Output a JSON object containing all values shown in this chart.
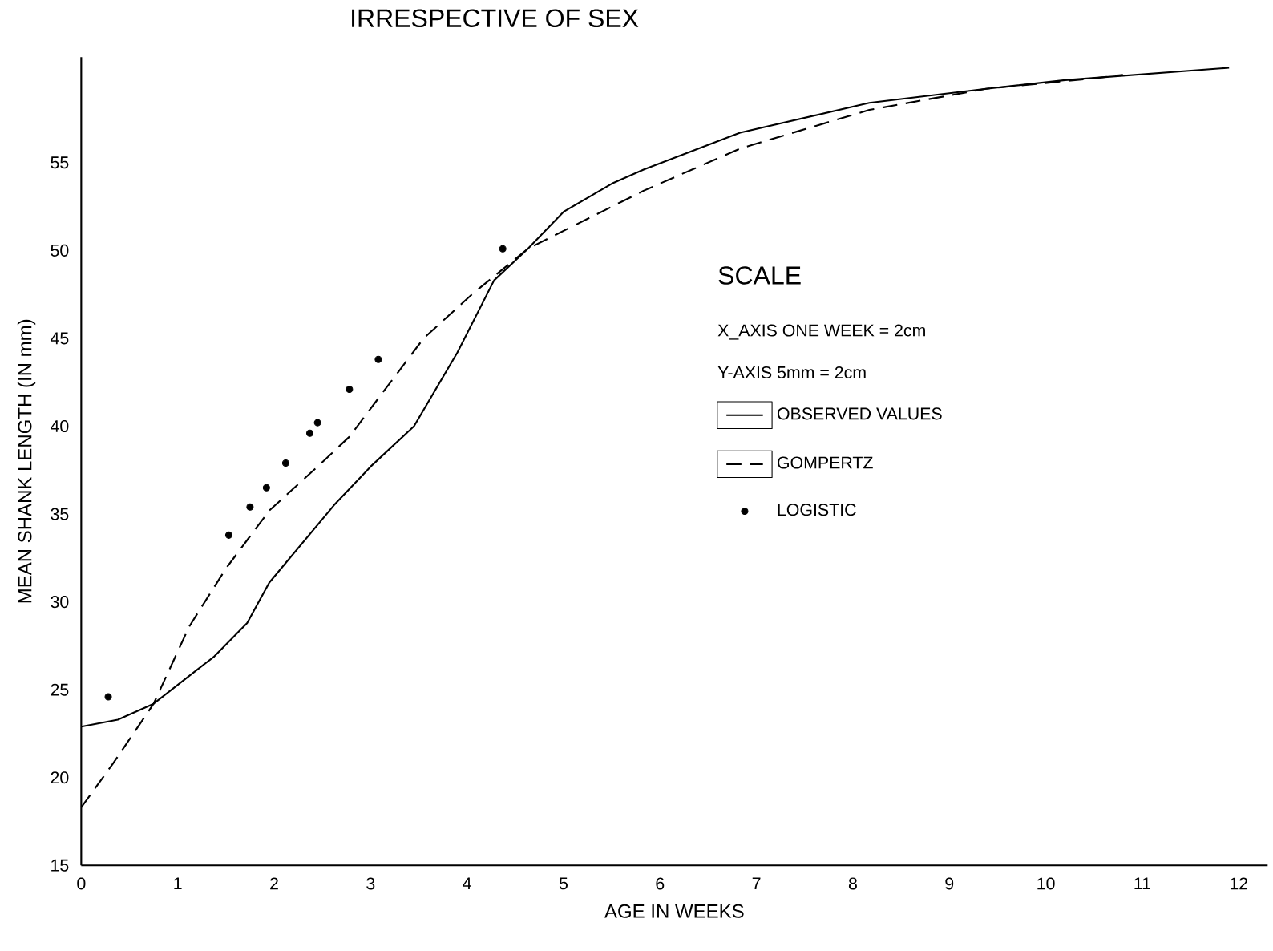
{
  "chart_data": {
    "type": "line",
    "title": "IRRESPECTIVE OF SEX",
    "xlabel": "AGE IN WEEKS",
    "ylabel": "MEAN SHANK LENGTH (IN mm)",
    "xlim": [
      0,
      12.3
    ],
    "ylim": [
      15,
      61
    ],
    "xticks": [
      0,
      1,
      2,
      3,
      4,
      5,
      6,
      7,
      8,
      9,
      10,
      11,
      12
    ],
    "yticks": [
      15,
      20,
      25,
      30,
      35,
      40,
      45,
      50,
      55
    ],
    "grid": false,
    "legend": "right",
    "annotations": [
      "SCALE",
      "X_AXIS   ONE WEEK = 2cm",
      "Y-AXIS   5mm = 2cm"
    ],
    "series": [
      {
        "name": "OBSERVED VALUES",
        "line_style": "solid",
        "color": "#000000",
        "x": [
          0,
          0.38,
          0.75,
          1.38,
          1.72,
          1.95,
          2.62,
          3.0,
          3.45,
          3.9,
          4.28,
          4.63,
          5.0,
          5.5,
          5.83,
          6.83,
          8.17,
          9.38,
          10.2,
          11.9
        ],
        "values": [
          22.9,
          23.3,
          24.2,
          26.9,
          28.8,
          31.1,
          35.5,
          37.7,
          40.0,
          44.2,
          48.3,
          50.1,
          52.2,
          53.8,
          54.6,
          56.7,
          58.4,
          59.2,
          59.7,
          60.4
        ]
      },
      {
        "name": "GOMPERTZ",
        "line_style": "dashed",
        "color": "#000000",
        "x": [
          0,
          0.33,
          0.75,
          1.12,
          1.5,
          1.95,
          2.45,
          2.78,
          3.55,
          4.05,
          4.63,
          5.83,
          6.83,
          8.17,
          9.38,
          10.5,
          10.8
        ],
        "values": [
          18.3,
          20.8,
          24.2,
          28.6,
          31.9,
          35.2,
          37.7,
          39.4,
          45.0,
          47.5,
          50.1,
          53.4,
          55.8,
          58.0,
          59.2,
          59.8,
          60.0
        ]
      },
      {
        "name": "LOGISTIC",
        "type": "scatter",
        "color": "#000000",
        "x": [
          0.28,
          1.53,
          1.75,
          1.92,
          2.12,
          2.37,
          2.45,
          2.78,
          3.08,
          4.37
        ],
        "values": [
          24.6,
          33.8,
          35.4,
          36.5,
          37.9,
          39.6,
          40.2,
          42.1,
          43.8,
          50.1
        ]
      }
    ]
  }
}
